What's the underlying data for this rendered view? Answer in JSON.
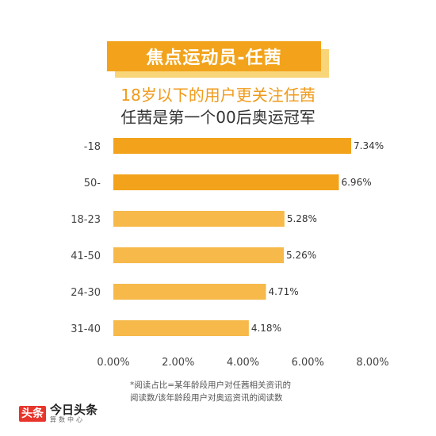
{
  "banner": {
    "title": "焦点运动员-任茜"
  },
  "subtitle": "18岁以下的用户更关注任茜",
  "subtitle2": "任茜是第一个00后奥运冠军",
  "footnote": {
    "line1": "*阅读占比=某年龄段用户对任茜相关资讯的",
    "line2": "阅读数/该年龄段用户对奥运资讯的阅读数"
  },
  "logo": {
    "badge": "头条",
    "name": "今日头条",
    "sub": "算数中心"
  },
  "colors": {
    "bar": "#f2a31b",
    "bar_light": "#f6b94a",
    "banner": "#f2a31b",
    "subtitle": "#f09a1a"
  },
  "chart_data": {
    "type": "bar",
    "orientation": "horizontal",
    "categories": [
      "-18",
      "50-",
      "18-23",
      "41-50",
      "24-30",
      "31-40"
    ],
    "values": [
      7.34,
      6.96,
      5.28,
      5.26,
      4.71,
      4.18
    ],
    "value_labels": [
      "7.34%",
      "6.96%",
      "5.28%",
      "5.26%",
      "4.71%",
      "4.18%"
    ],
    "xlim": [
      0,
      8
    ],
    "x_ticks": [
      "0.00%",
      "2.00%",
      "4.00%",
      "6.00%",
      "8.00%"
    ],
    "grid": false,
    "legend": "none"
  }
}
